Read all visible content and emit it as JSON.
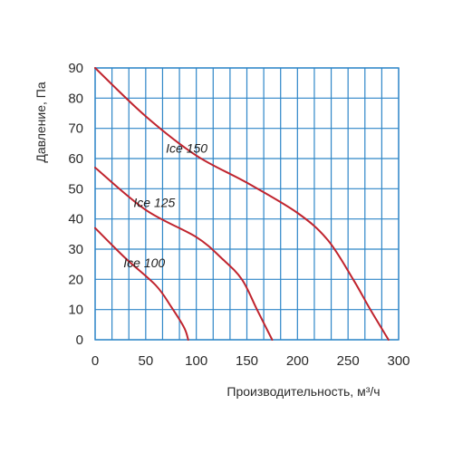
{
  "chart_data": {
    "type": "line",
    "xlabel": "Производительность, м³/ч",
    "ylabel": "Давление, Па",
    "xlim": [
      0,
      300
    ],
    "ylim": [
      0,
      90
    ],
    "x_ticks": [
      0,
      50,
      100,
      150,
      200,
      250,
      300
    ],
    "y_ticks": [
      0,
      10,
      20,
      30,
      40,
      50,
      60,
      70,
      80,
      90
    ],
    "grid": true,
    "colors": {
      "grid": "#2e86c8",
      "line": "#c0242e",
      "frame": "#2e86c8"
    },
    "series": [
      {
        "name": "Ice 150",
        "label_at": [
          70,
          62
        ],
        "points": [
          [
            0,
            90
          ],
          [
            50,
            74
          ],
          [
            100,
            61
          ],
          [
            150,
            52
          ],
          [
            200,
            42
          ],
          [
            230,
            33
          ],
          [
            255,
            20
          ],
          [
            272,
            10
          ],
          [
            290,
            0
          ]
        ]
      },
      {
        "name": "Ice 125",
        "label_at": [
          38,
          44
        ],
        "points": [
          [
            0,
            57
          ],
          [
            50,
            43
          ],
          [
            100,
            34
          ],
          [
            125,
            27
          ],
          [
            145,
            20
          ],
          [
            160,
            10
          ],
          [
            175,
            0
          ]
        ]
      },
      {
        "name": "Ice 100",
        "label_at": [
          28,
          24
        ],
        "points": [
          [
            0,
            37
          ],
          [
            30,
            27
          ],
          [
            60,
            18
          ],
          [
            75,
            11
          ],
          [
            88,
            4
          ],
          [
            92,
            0
          ]
        ]
      }
    ]
  }
}
